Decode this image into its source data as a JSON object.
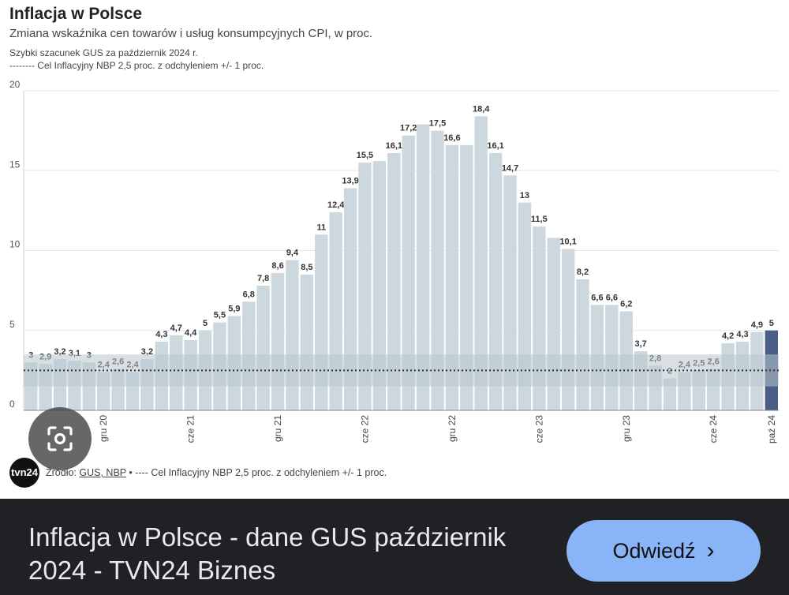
{
  "header": {
    "title": "Inflacja w Polsce",
    "subtitle": "Zmiana wskaźnika cen towarów i usług konsumpcyjnych CPI, w proc.",
    "note1": "Szybki szacunek GUS za październik 2024 r.",
    "note2": "-------- Cel Inflacyjny NBP 2,5 proc. z odchyleniem +/- 1 proc."
  },
  "source": {
    "prefix": "Źródło: ",
    "links": "GUS, NBP",
    "suffix": " • ---- Cel Inflacyjny NBP 2,5 proc. z odchyleniem +/- 1 proc.",
    "logo_text": "tvn24"
  },
  "chart_data": {
    "type": "bar",
    "title": "Inflacja w Polsce",
    "subtitle": "Zmiana wskaźnika cen towarów i usług konsumpcyjnych CPI, w proc.",
    "ylim": [
      0,
      20
    ],
    "yticks": [
      "0",
      "5",
      "10",
      "15",
      "20"
    ],
    "grid": true,
    "values": [
      3,
      2.9,
      3.2,
      3.1,
      3,
      2.4,
      2.6,
      2.4,
      3.2,
      4.3,
      4.7,
      4.4,
      5,
      5.5,
      5.9,
      6.8,
      7.8,
      8.6,
      9.4,
      8.5,
      11,
      12.4,
      13.9,
      15.5,
      15.6,
      16.1,
      17.2,
      17.9,
      17.5,
      16.6,
      16.6,
      18.4,
      16.1,
      14.7,
      13,
      11.5,
      10.8,
      10.1,
      8.2,
      6.6,
      6.6,
      6.2,
      3.7,
      2.8,
      2,
      2.4,
      2.5,
      2.6,
      4.2,
      4.3,
      4.9,
      5
    ],
    "labels": [
      "3",
      "2,9",
      "3,2",
      "3,1",
      "3",
      "2,4",
      "2,6",
      "2,4",
      "3,2",
      "4,3",
      "4,7",
      "4,4",
      "5",
      "5,5",
      "5,9",
      "6,8",
      "7,8",
      "8,6",
      "9,4",
      "8,5",
      "11",
      "12,4",
      "13,9",
      "15,5",
      "",
      "16,1",
      "17,2",
      "",
      "17,5",
      "16,6",
      "",
      "18,4",
      "16,1",
      "14,7",
      "13",
      "11,5",
      "",
      "10,1",
      "8,2",
      "6,6",
      "6,6",
      "6,2",
      "3,7",
      "2,8",
      "2",
      "2,4",
      "2,5",
      "2,6",
      "4,2",
      "4,3",
      "4,9",
      "5"
    ],
    "x_ticks": [
      {
        "index": 5,
        "label": "gru 20"
      },
      {
        "index": 11,
        "label": "cze 21"
      },
      {
        "index": 17,
        "label": "gru 21"
      },
      {
        "index": 23,
        "label": "cze 22"
      },
      {
        "index": 29,
        "label": "gru 22"
      },
      {
        "index": 35,
        "label": "cze 23"
      },
      {
        "index": 41,
        "label": "gru 23"
      },
      {
        "index": 47,
        "label": "cze 24"
      },
      {
        "index": 51,
        "label": "paź 24"
      }
    ],
    "target": 2.5,
    "target_band": [
      1.5,
      3.5
    ],
    "highlight_index": 51,
    "colors": {
      "bar": "#cdd8de",
      "highlight": "#4a5d85",
      "band": "#b9c6cd",
      "target_line": "#333333",
      "grid": "#e6e6e6"
    }
  },
  "footer": {
    "title": "Inflacja w Polsce - dane GUS październik 2024 - TVN24 Biznes",
    "button_label": "Odwiedź",
    "button_chevron": "›"
  }
}
